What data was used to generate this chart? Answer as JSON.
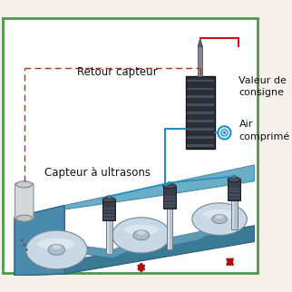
{
  "border_color": "#4a9a4a",
  "background_color": "#f5f0eb",
  "dashed_line_color": "#b03020",
  "red_line_color": "#cc1010",
  "blue_line_color": "#2090c0",
  "arrow_color": "#aa1010",
  "text_color": "#111111",
  "label_retour": "Retour capteur",
  "label_valeur1": "Valeur de",
  "label_valeur2": "consigne",
  "label_air1": "Air",
  "label_air2": "comprimé",
  "label_capteur": "Capteur à ultrasons",
  "conveyor_blue_main": "#5b9ab5",
  "conveyor_blue_light": "#7bbdd4",
  "conveyor_blue_dark": "#3a7a9a",
  "conveyor_blue_side": "#2a6a8a",
  "roller_light": "#dde8ee",
  "roller_mid": "#a8bcc8",
  "roller_dark": "#607888",
  "piston_silver": "#c0c8d0",
  "piston_dark": "#404858",
  "device_body": "#2a2e38",
  "device_rib": "#383e4a",
  "needle_gray": "#787878",
  "sensor_light": "#d4d8dc",
  "font_size_main": 8.5,
  "font_size_small": 8
}
